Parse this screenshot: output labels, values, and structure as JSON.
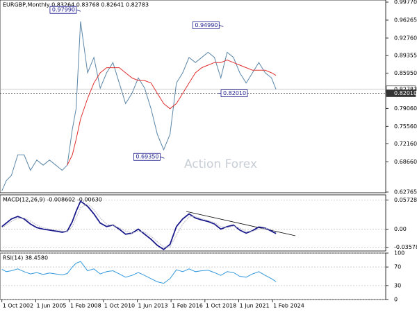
{
  "chart_data": [
    {
      "type": "line",
      "title": "EURGBP,Monthly 0.83264 0.83768 0.82641 0.82783",
      "watermark": "Action Forex",
      "x": [
        2002.75,
        2003.1,
        2003.5,
        2004.0,
        2004.5,
        2005.0,
        2005.5,
        2006.0,
        2006.5,
        2007.0,
        2007.5,
        2007.9,
        2008.3,
        2008.6,
        2008.95,
        2009.5,
        2010.0,
        2010.5,
        2011.0,
        2011.5,
        2012.0,
        2012.5,
        2013.0,
        2013.5,
        2014.0,
        2014.5,
        2015.0,
        2015.5,
        2016.0,
        2016.5,
        2017.0,
        2017.5,
        2018.0,
        2018.5,
        2019.0,
        2019.5,
        2020.0,
        2020.5,
        2021.0,
        2021.5,
        2022.0,
        2022.5,
        2023.0,
        2023.5,
        2024.0,
        2024.35
      ],
      "series": [
        {
          "color": "#5b86a8",
          "values": [
            0.63,
            0.65,
            0.66,
            0.7,
            0.7,
            0.67,
            0.69,
            0.68,
            0.69,
            0.68,
            0.67,
            0.68,
            0.75,
            0.79,
            0.96,
            0.86,
            0.89,
            0.83,
            0.86,
            0.88,
            0.84,
            0.8,
            0.82,
            0.85,
            0.83,
            0.79,
            0.74,
            0.71,
            0.74,
            0.84,
            0.86,
            0.89,
            0.88,
            0.89,
            0.9,
            0.89,
            0.85,
            0.9,
            0.89,
            0.86,
            0.84,
            0.86,
            0.88,
            0.86,
            0.85,
            0.82783
          ]
        },
        {
          "color": "#e03030",
          "values": [
            null,
            null,
            null,
            null,
            null,
            null,
            null,
            null,
            null,
            null,
            null,
            0.68,
            0.7,
            0.73,
            0.77,
            0.81,
            0.84,
            0.86,
            0.87,
            0.87,
            0.87,
            0.86,
            0.85,
            0.845,
            0.845,
            0.84,
            0.82,
            0.8,
            0.79,
            0.8,
            0.82,
            0.84,
            0.86,
            0.87,
            0.875,
            0.88,
            0.88,
            0.885,
            0.88,
            0.875,
            0.87,
            0.865,
            0.865,
            0.865,
            0.86,
            0.855
          ]
        }
      ],
      "annotations": [
        {
          "value": 0.9799,
          "label": "0.97990",
          "x": 2008.95
        },
        {
          "value": 0.9499,
          "label": "0.94990",
          "x": 2020.2
        },
        {
          "value": 0.8201,
          "label": "0.82010",
          "x": 2019.8
        },
        {
          "value": 0.6935,
          "label": "0.69350",
          "x": 2015.55
        }
      ],
      "price_labels": [
        {
          "value": 0.82783,
          "label": "0.82783"
        },
        {
          "value": 0.8201,
          "label": "0.82010"
        }
      ],
      "xlim": [
        2002.6,
        2033.0
      ],
      "ylim": [
        0.6263,
        1.0018
      ],
      "yticks": [
        {
          "value": 0.9977,
          "label": "0.99770"
        },
        {
          "value": 0.96265,
          "label": "0.96265"
        },
        {
          "value": 0.9276,
          "label": "0.92760"
        },
        {
          "value": 0.89355,
          "label": "0.89355"
        },
        {
          "value": 0.8595,
          "label": "0.85950"
        },
        {
          "value": 0.7906,
          "label": "0.79060"
        },
        {
          "value": 0.7556,
          "label": "0.75560"
        },
        {
          "value": 0.7216,
          "label": "0.72160"
        },
        {
          "value": 0.6866,
          "label": "0.68660"
        },
        {
          "value": 0.62765,
          "label": "0.62765"
        }
      ],
      "grid": false
    },
    {
      "type": "line",
      "title": "MACD(12,26,9) -0.008602 -0.00630",
      "x": [
        2002.75,
        2003.1,
        2003.5,
        2004.0,
        2004.5,
        2005.0,
        2005.5,
        2006.0,
        2006.5,
        2007.0,
        2007.5,
        2007.9,
        2008.3,
        2008.6,
        2008.95,
        2009.5,
        2010.0,
        2010.5,
        2011.0,
        2011.5,
        2012.0,
        2012.5,
        2013.0,
        2013.5,
        2014.0,
        2014.5,
        2015.0,
        2015.5,
        2016.0,
        2016.5,
        2017.0,
        2017.5,
        2018.0,
        2018.5,
        2019.0,
        2019.5,
        2020.0,
        2020.5,
        2021.0,
        2021.5,
        2022.0,
        2022.5,
        2023.0,
        2023.5,
        2024.0,
        2024.35
      ],
      "series": [
        {
          "color": "#1a1a8c",
          "values": [
            0.005,
            0.012,
            0.02,
            0.025,
            0.02,
            0.01,
            0.003,
            0.0,
            -0.002,
            -0.004,
            -0.006,
            -0.004,
            0.015,
            0.035,
            0.055,
            0.045,
            0.03,
            0.012,
            0.005,
            0.008,
            0.0,
            -0.01,
            -0.008,
            0.0,
            -0.01,
            -0.02,
            -0.032,
            -0.04,
            -0.03,
            0.005,
            0.02,
            0.03,
            0.022,
            0.018,
            0.015,
            0.01,
            0.0,
            0.005,
            0.008,
            -0.002,
            -0.008,
            -0.003,
            0.004,
            0.002,
            -0.004,
            -0.008602
          ]
        },
        {
          "color": "#b8b8c8",
          "values": [
            0.003,
            0.008,
            0.015,
            0.021,
            0.022,
            0.016,
            0.008,
            0.003,
            0.0,
            -0.002,
            -0.004,
            -0.005,
            0.005,
            0.022,
            0.042,
            0.05,
            0.038,
            0.022,
            0.01,
            0.007,
            0.003,
            -0.004,
            -0.008,
            -0.004,
            -0.006,
            -0.014,
            -0.025,
            -0.035,
            -0.035,
            -0.012,
            0.01,
            0.024,
            0.025,
            0.02,
            0.017,
            0.013,
            0.005,
            0.003,
            0.006,
            0.002,
            -0.004,
            -0.004,
            0.0,
            0.002,
            -0.001,
            -0.0063
          ]
        }
      ],
      "xlim": [
        2002.6,
        2033.0
      ],
      "ylim": [
        -0.043,
        0.0675
      ],
      "yticks": [
        0.05728,
        {
          "value": 0,
          "label": "0.00"
        },
        -0.035783
      ],
      "grid": true
    },
    {
      "type": "line",
      "title": "RSI(14) 38.4580",
      "x": [
        2002.75,
        2003.1,
        2003.5,
        2004.0,
        2004.5,
        2005.0,
        2005.5,
        2006.0,
        2006.5,
        2007.0,
        2007.5,
        2007.9,
        2008.3,
        2008.6,
        2008.95,
        2009.5,
        2010.0,
        2010.5,
        2011.0,
        2011.5,
        2012.0,
        2012.5,
        2013.0,
        2013.5,
        2014.0,
        2014.5,
        2015.0,
        2015.5,
        2016.0,
        2016.5,
        2017.0,
        2017.5,
        2018.0,
        2018.5,
        2019.0,
        2019.5,
        2020.0,
        2020.5,
        2021.0,
        2021.5,
        2022.0,
        2022.5,
        2023.0,
        2023.5,
        2024.0,
        2024.35
      ],
      "series": [
        {
          "color": "#3399dd",
          "values": [
            65,
            60,
            62,
            66,
            60,
            55,
            58,
            54,
            57,
            55,
            53,
            56,
            70,
            78,
            82,
            62,
            66,
            55,
            60,
            62,
            55,
            48,
            52,
            58,
            52,
            45,
            38,
            35,
            45,
            64,
            60,
            66,
            60,
            62,
            63,
            58,
            52,
            60,
            58,
            50,
            48,
            55,
            60,
            52,
            45,
            38.458
          ]
        }
      ],
      "xlim": [
        2002.6,
        2033.0
      ],
      "ylim": [
        0,
        100
      ],
      "yticks": [
        100,
        70,
        30,
        0
      ],
      "grid": true,
      "xticks": [
        {
          "value": 2002.75,
          "label": "1 Oct 2002"
        },
        {
          "value": 2005.42,
          "label": "1 Jun 2005"
        },
        {
          "value": 2008.08,
          "label": "1 Feb 2008"
        },
        {
          "value": 2010.75,
          "label": "1 Oct 2010"
        },
        {
          "value": 2013.42,
          "label": "1 Jun 2013"
        },
        {
          "value": 2016.08,
          "label": "1 Feb 2016"
        },
        {
          "value": 2018.75,
          "label": "1 Oct 2018"
        },
        {
          "value": 2021.42,
          "label": "1 Jun 2021"
        },
        {
          "value": 2024.08,
          "label": "1 Feb 2024"
        }
      ]
    }
  ]
}
